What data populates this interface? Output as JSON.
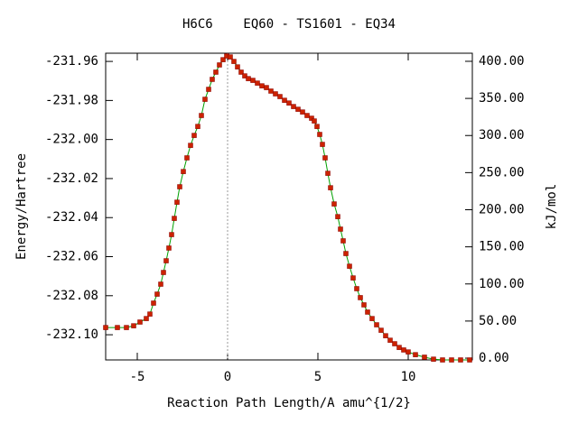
{
  "chart_data": {
    "type": "line",
    "title": "H6C6    EQ60 - TS1601 - EQ34",
    "xlabel": "Reaction Path Length/A amu^{1/2}",
    "ylabel": "Energy/Hartree",
    "y2label": "kJ/mol",
    "x": [
      -6.75,
      -6.1,
      -5.6,
      -5.2,
      -4.85,
      -4.5,
      -4.3,
      -4.1,
      -3.9,
      -3.7,
      -3.55,
      -3.4,
      -3.25,
      -3.1,
      -2.95,
      -2.8,
      -2.65,
      -2.45,
      -2.25,
      -2.05,
      -1.85,
      -1.65,
      -1.45,
      -1.25,
      -1.05,
      -0.85,
      -0.65,
      -0.45,
      -0.25,
      -0.05,
      0.15,
      0.35,
      0.55,
      0.75,
      0.95,
      1.15,
      1.4,
      1.65,
      1.9,
      2.15,
      2.4,
      2.65,
      2.9,
      3.15,
      3.4,
      3.65,
      3.9,
      4.15,
      4.4,
      4.65,
      4.8,
      4.95,
      5.1,
      5.25,
      5.4,
      5.55,
      5.7,
      5.9,
      6.1,
      6.25,
      6.4,
      6.55,
      6.75,
      6.95,
      7.15,
      7.35,
      7.55,
      7.75,
      8.0,
      8.25,
      8.5,
      8.75,
      9.0,
      9.25,
      9.5,
      9.75,
      10.0,
      10.4,
      10.9,
      11.4,
      11.9,
      12.4,
      12.9,
      13.4
    ],
    "series": [
      {
        "name": "energy",
        "color": "#00a000",
        "marker_color": "#cc2200",
        "values": [
          -232.0963,
          -232.0963,
          -232.0963,
          -232.0954,
          -232.0935,
          -232.0917,
          -232.0894,
          -232.0838,
          -232.0792,
          -232.0741,
          -232.0681,
          -232.0621,
          -232.0556,
          -232.0487,
          -232.0404,
          -232.0321,
          -232.0242,
          -232.0164,
          -232.0094,
          -232.003,
          -231.9979,
          -231.9933,
          -231.9877,
          -231.9794,
          -231.9743,
          -231.9692,
          -231.9655,
          -231.9618,
          -231.9591,
          -231.9572,
          -231.9577,
          -231.96,
          -231.9628,
          -231.9655,
          -231.9674,
          -231.9688,
          -231.9697,
          -231.9711,
          -231.9725,
          -231.9734,
          -231.9752,
          -231.9766,
          -231.978,
          -231.9799,
          -231.9813,
          -231.9831,
          -231.9845,
          -231.9859,
          -231.9877,
          -231.9891,
          -231.9905,
          -231.9933,
          -231.9974,
          -232.0025,
          -232.0094,
          -232.0173,
          -232.0247,
          -232.033,
          -232.0395,
          -232.0459,
          -232.0519,
          -232.0584,
          -232.0649,
          -232.0709,
          -232.0764,
          -232.081,
          -232.0847,
          -232.0884,
          -232.0917,
          -232.0949,
          -232.0977,
          -232.1005,
          -232.1028,
          -232.1046,
          -232.1065,
          -232.1078,
          -232.1088,
          -232.1102,
          -232.1115,
          -232.1125,
          -232.1129,
          -232.1129,
          -232.1129,
          -232.1129
        ]
      }
    ],
    "xlim": [
      -6.75,
      13.55
    ],
    "xticks": [
      -5,
      0,
      5,
      10
    ],
    "ylim": [
      -232.1129,
      -231.9558
    ],
    "yticks": [
      -231.96,
      -231.98,
      {
        "value": -232,
        "label": "-232.00"
      },
      -232.02,
      -232.04,
      -232.06,
      -232.08,
      {
        "value": -232.1,
        "label": "-232.10"
      }
    ],
    "y2lim": [
      -2.4,
      410.9
    ],
    "y2ticks": [
      {
        "value": 400,
        "label": "400.00"
      },
      {
        "value": 350,
        "label": "350.00"
      },
      {
        "value": 300,
        "label": "300.00"
      },
      {
        "value": 250,
        "label": "250.00"
      },
      {
        "value": 200,
        "label": "200.00"
      },
      {
        "value": 150,
        "label": "150.00"
      },
      {
        "value": 100,
        "label": "100.00"
      },
      {
        "value": 50,
        "label": "50.00"
      },
      {
        "value": 0,
        "label": "0.00"
      }
    ],
    "vline_x": 0,
    "grid": false
  }
}
